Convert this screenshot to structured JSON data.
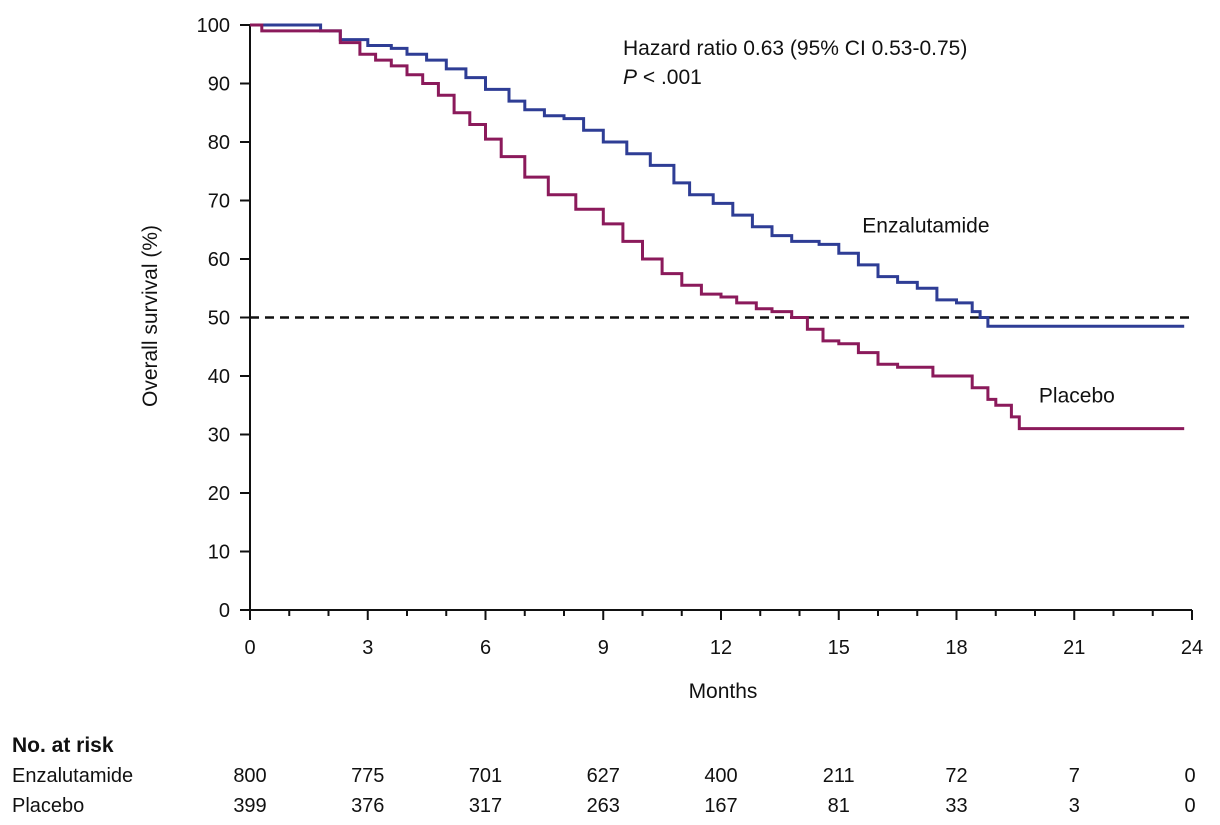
{
  "chart_data": {
    "type": "line",
    "ylabel": "Overall survival (%)",
    "xlabel": "Months",
    "xlim": [
      0,
      24
    ],
    "ylim": [
      0,
      100
    ],
    "x_ticks": [
      0,
      3,
      6,
      9,
      12,
      15,
      18,
      21,
      24
    ],
    "x_tick_labels": [
      "0",
      "3",
      "6",
      "9",
      "12",
      "15",
      "18",
      "21",
      "24"
    ],
    "y_ticks": [
      0,
      10,
      20,
      30,
      40,
      50,
      60,
      70,
      80,
      90,
      100
    ],
    "y_tick_labels": [
      "0",
      "10",
      "20",
      "30",
      "40",
      "50",
      "60",
      "70",
      "80",
      "90",
      "100"
    ],
    "reference_line": {
      "y": 50,
      "style": "dashed"
    },
    "annotation": {
      "hr_text": "Hazard ratio 0.63 (95% CI 0.53-0.75)",
      "p_letter": "P",
      "p_value": " < .001"
    },
    "series": [
      {
        "name": "Enzalutamide",
        "color": "#2e3d95",
        "points": [
          [
            0,
            100
          ],
          [
            1.8,
            99
          ],
          [
            2.3,
            97.5
          ],
          [
            3,
            96.5
          ],
          [
            3.6,
            96
          ],
          [
            4,
            95
          ],
          [
            4.5,
            94
          ],
          [
            5,
            92.5
          ],
          [
            5.5,
            91
          ],
          [
            6,
            89
          ],
          [
            6.6,
            87
          ],
          [
            7,
            85.5
          ],
          [
            7.5,
            84.5
          ],
          [
            8,
            84
          ],
          [
            8.5,
            82
          ],
          [
            9,
            80
          ],
          [
            9.6,
            78
          ],
          [
            10.2,
            76
          ],
          [
            10.8,
            73
          ],
          [
            11.2,
            71
          ],
          [
            11.8,
            69.5
          ],
          [
            12.3,
            67.5
          ],
          [
            12.8,
            65.5
          ],
          [
            13.3,
            64
          ],
          [
            13.8,
            63
          ],
          [
            14.5,
            62.5
          ],
          [
            15,
            61
          ],
          [
            15.5,
            59
          ],
          [
            16,
            57
          ],
          [
            16.5,
            56
          ],
          [
            17,
            55
          ],
          [
            17.5,
            53
          ],
          [
            18,
            52.5
          ],
          [
            18.4,
            51
          ],
          [
            18.6,
            50
          ],
          [
            18.8,
            48.5
          ],
          [
            23.8,
            48.5
          ]
        ]
      },
      {
        "name": "Placebo",
        "color": "#8b1a5b",
        "points": [
          [
            0,
            100
          ],
          [
            0.3,
            99
          ],
          [
            1.8,
            99
          ],
          [
            2.3,
            97
          ],
          [
            2.8,
            95
          ],
          [
            3.2,
            94
          ],
          [
            3.6,
            93
          ],
          [
            4,
            91.5
          ],
          [
            4.4,
            90
          ],
          [
            4.8,
            88
          ],
          [
            5.2,
            85
          ],
          [
            5.6,
            83
          ],
          [
            6,
            80.5
          ],
          [
            6.4,
            77.5
          ],
          [
            7,
            74
          ],
          [
            7.6,
            71
          ],
          [
            8.3,
            68.5
          ],
          [
            9,
            66
          ],
          [
            9.5,
            63
          ],
          [
            10,
            60
          ],
          [
            10.5,
            57.5
          ],
          [
            11,
            55.5
          ],
          [
            11.5,
            54
          ],
          [
            12,
            53.5
          ],
          [
            12.4,
            52.5
          ],
          [
            12.9,
            51.5
          ],
          [
            13.3,
            51
          ],
          [
            13.8,
            50
          ],
          [
            14.2,
            48
          ],
          [
            14.6,
            46
          ],
          [
            15,
            45.5
          ],
          [
            15.5,
            44
          ],
          [
            16,
            42
          ],
          [
            16.5,
            41.5
          ],
          [
            17.4,
            40
          ],
          [
            18.4,
            38
          ],
          [
            18.8,
            36
          ],
          [
            19,
            35
          ],
          [
            19.4,
            33
          ],
          [
            19.6,
            31
          ],
          [
            23.8,
            31
          ]
        ]
      }
    ],
    "series_labels": [
      {
        "text": "Enzalutamide",
        "x": 15.6,
        "y": 64.5
      },
      {
        "text": "Placebo",
        "x": 20.1,
        "y": 35.5
      }
    ],
    "risk_table": {
      "title": "No. at risk",
      "timepoints": [
        0,
        3,
        6,
        9,
        12,
        15,
        18,
        21,
        24
      ],
      "rows": [
        {
          "label": "Enzalutamide",
          "values": [
            "800",
            "775",
            "701",
            "627",
            "400",
            "211",
            "72",
            "7",
            "0"
          ]
        },
        {
          "label": "Placebo",
          "values": [
            "399",
            "376",
            "317",
            "263",
            "167",
            "81",
            "33",
            "3",
            "0"
          ]
        }
      ]
    }
  }
}
